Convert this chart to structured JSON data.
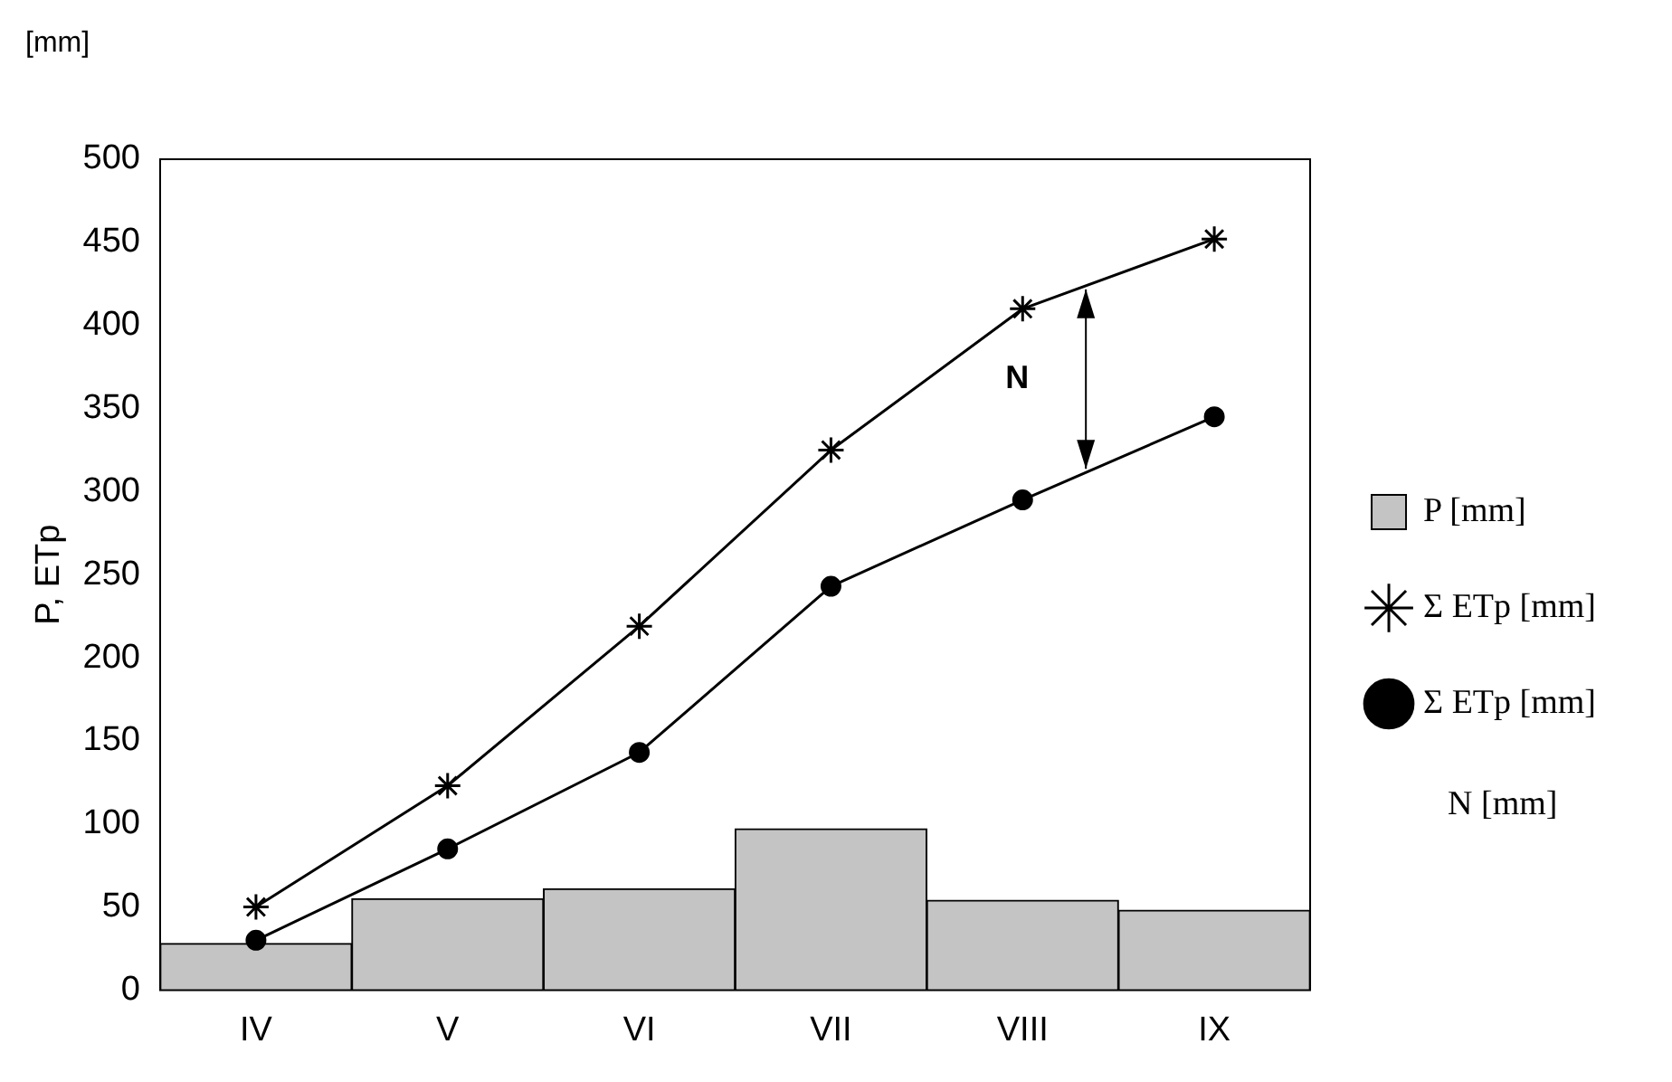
{
  "chart_data": {
    "type": "bar",
    "ylabel": "P, ETp",
    "categories": [
      "IV",
      "V",
      "VI",
      "VII",
      "VIII",
      "IX"
    ],
    "series": [
      {
        "name": "P [mm]",
        "color": "#c4c4c4",
        "values": [
          28,
          55,
          61,
          97,
          54,
          48
        ]
      },
      {
        "name": "Σ ETp [mm]",
        "type": "line",
        "color": "#000000",
        "marker": "cross",
        "values": [
          50,
          123,
          219,
          325,
          410,
          452
        ]
      },
      {
        "name": "Σ ETp [mm]",
        "type": "line",
        "color": "#000000",
        "marker": "circle",
        "values": [
          30,
          85,
          143,
          243,
          295,
          345
        ]
      }
    ],
    "annotations": [
      "[mm]",
      "N",
      "N [mm]"
    ],
    "ylim": [
      0,
      500
    ],
    "yticks": [
      0,
      50,
      100,
      150,
      200,
      250,
      300,
      350,
      400,
      450,
      500
    ],
    "grid": false,
    "legend": "right"
  }
}
